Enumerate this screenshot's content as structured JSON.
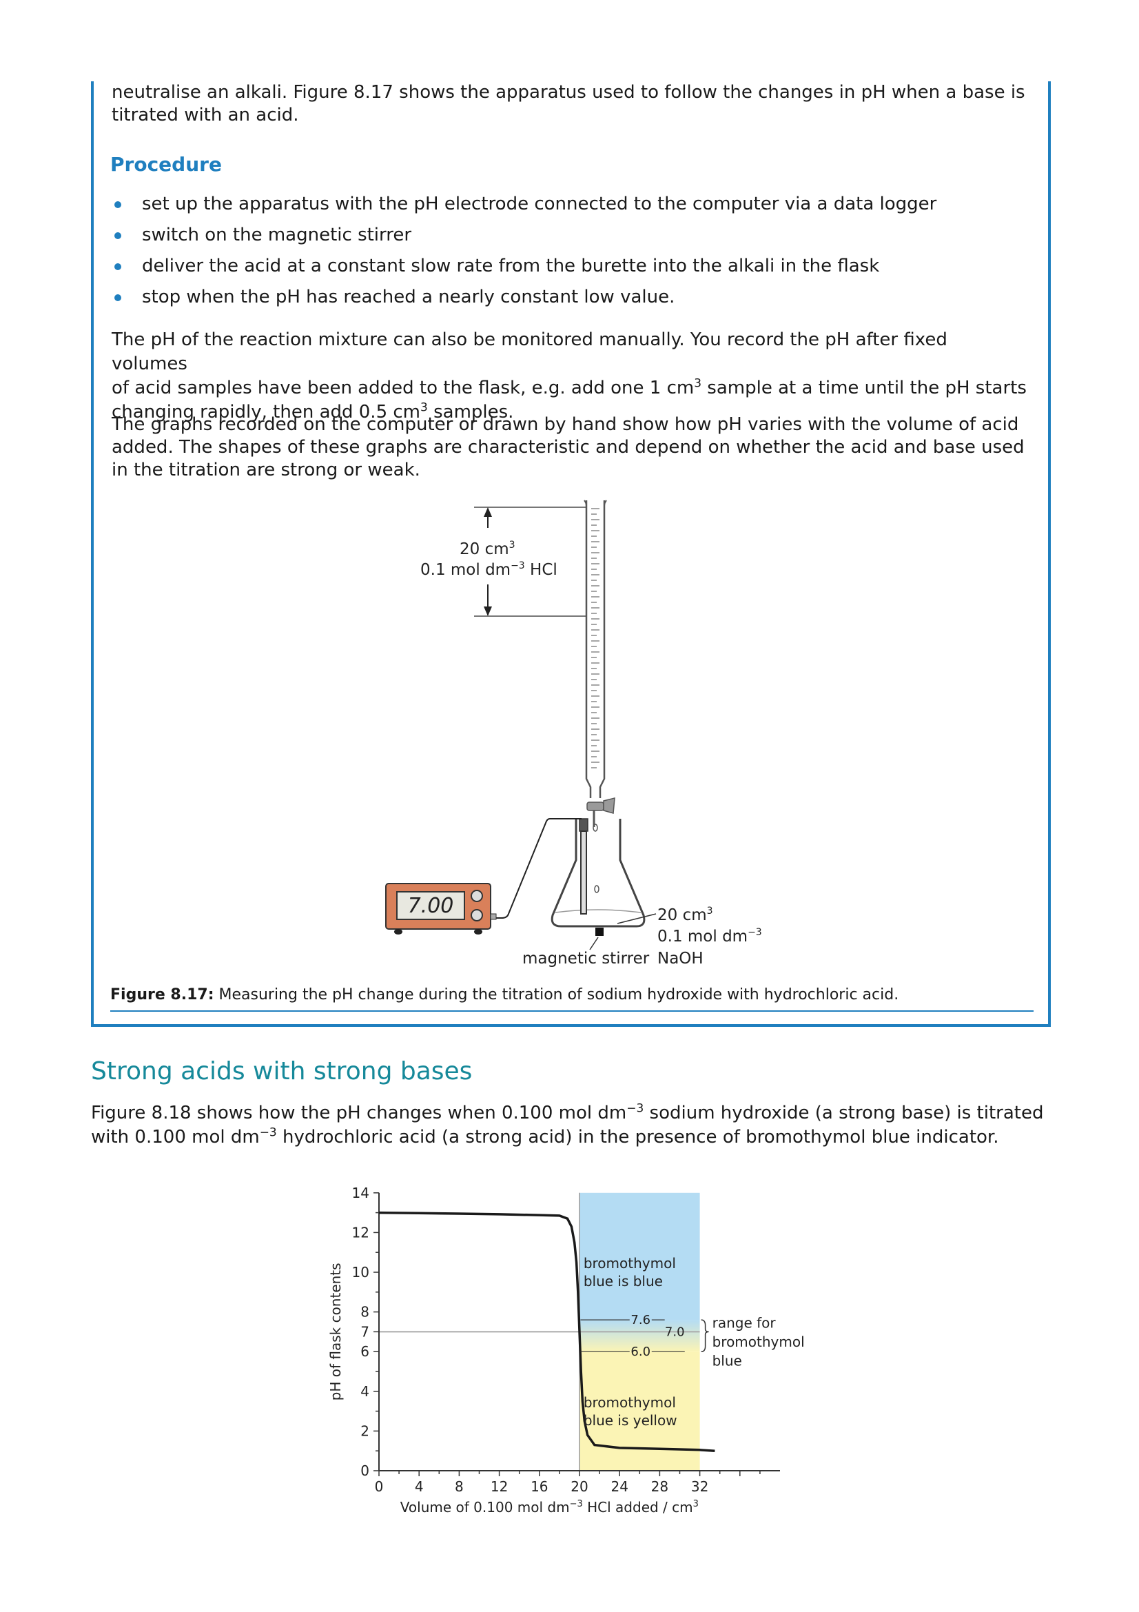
{
  "intro": {
    "line1": "neutralise an alkali. Figure 8.17 shows the apparatus used to follow the changes in pH when a base is",
    "line2": "titrated with an acid."
  },
  "procedure": {
    "heading": "Procedure",
    "steps": [
      "set up the apparatus with the pH electrode connected to the computer via a data logger",
      "switch on the magnetic stirrer",
      "deliver the acid at a constant slow rate from the burette into the alkali in the flask",
      "stop when the pH has reached a nearly constant low value."
    ]
  },
  "manual_para": {
    "l1": "The pH of the reaction mixture can also be monitored manually. You record the pH after fixed volumes",
    "l2a": "of acid samples have been added to the flask, e.g. add one 1 cm",
    "l2sup": "3",
    "l2b": " sample at a time until the pH starts",
    "l3a": "changing rapidly, then add 0.5 cm",
    "l3sup": "3",
    "l3b": " samples."
  },
  "graphs_para": {
    "l1": "The graphs recorded on the computer or drawn by hand show how pH varies with the volume of acid",
    "l2": "added. The shapes of these graphs are characteristic and depend on whether the acid and base used",
    "l3": "in the titration are strong or weak."
  },
  "apparatus": {
    "burette_volume": "20 cm",
    "burette_volume_sup": "3",
    "burette_conc": "0.1 mol dm",
    "burette_conc_sup": "−3",
    "burette_acid": " HCl",
    "meter_reading": "7.00",
    "flask_volume": "20 cm",
    "flask_volume_sup": "3",
    "flask_conc": "0.1 mol dm",
    "flask_conc_sup": "−3",
    "flask_base": "NaOH",
    "stirrer_label": "magnetic stirrer"
  },
  "figure_817": {
    "label": "Figure 8.17:",
    "text": " Measuring the pH change during the titration of sodium hydroxide with hydrochloric acid."
  },
  "section": {
    "heading": "Strong acids with strong bases",
    "l1a": "Figure 8.18 shows how the pH changes when 0.100 mol dm",
    "l1sup": "−3",
    "l1b": " sodium hydroxide (a strong base) is titrated",
    "l2a": "with 0.100 mol dm",
    "l2sup": "−3",
    "l2b": " hydrochloric acid (a strong acid) in the presence of bromothymol blue indicator."
  },
  "chart_data": {
    "type": "line",
    "xlabel_a": "Volume of 0.100 mol dm",
    "xlabel_sup": "−3",
    "xlabel_b": " HCl added / cm",
    "xlabel_sup2": "3",
    "ylabel": "pH of flask contents",
    "xlim": [
      0,
      40
    ],
    "ylim": [
      0,
      14
    ],
    "x_ticks": [
      0,
      4,
      8,
      12,
      16,
      20,
      24,
      28,
      32
    ],
    "y_ticks": [
      0,
      2,
      4,
      6,
      7,
      8,
      10,
      12,
      14
    ],
    "series": [
      {
        "x": [
          0,
          4,
          8,
          12,
          16,
          18,
          18.8,
          19.2,
          19.5,
          19.7,
          19.85,
          20,
          20.15,
          20.3,
          20.5,
          20.8,
          21.5,
          24,
          28,
          32,
          33.5
        ],
        "y": [
          13.0,
          12.98,
          12.95,
          12.92,
          12.88,
          12.85,
          12.7,
          12.3,
          11.5,
          10.5,
          9.0,
          7.0,
          5.0,
          3.5,
          2.5,
          1.8,
          1.3,
          1.15,
          1.1,
          1.05,
          1.0
        ]
      }
    ],
    "indicator_region": {
      "x_start": 20,
      "x_end": 32,
      "blue_above": 7.6,
      "yellow_below": 6.0
    },
    "annotations": {
      "blue_label_1": "bromothymol",
      "blue_label_2": "blue is blue",
      "yellow_label_1": "bromothymol",
      "yellow_label_2": "blue is yellow",
      "upper": "7.6",
      "mid": "7.0",
      "lower": "6.0",
      "range_1": "range for",
      "range_2": "bromothymol",
      "range_3": "blue"
    },
    "colors": {
      "blue": "#b4dcf3",
      "yellow": "#fbf4b5",
      "curve": "#1a1a1a"
    }
  }
}
